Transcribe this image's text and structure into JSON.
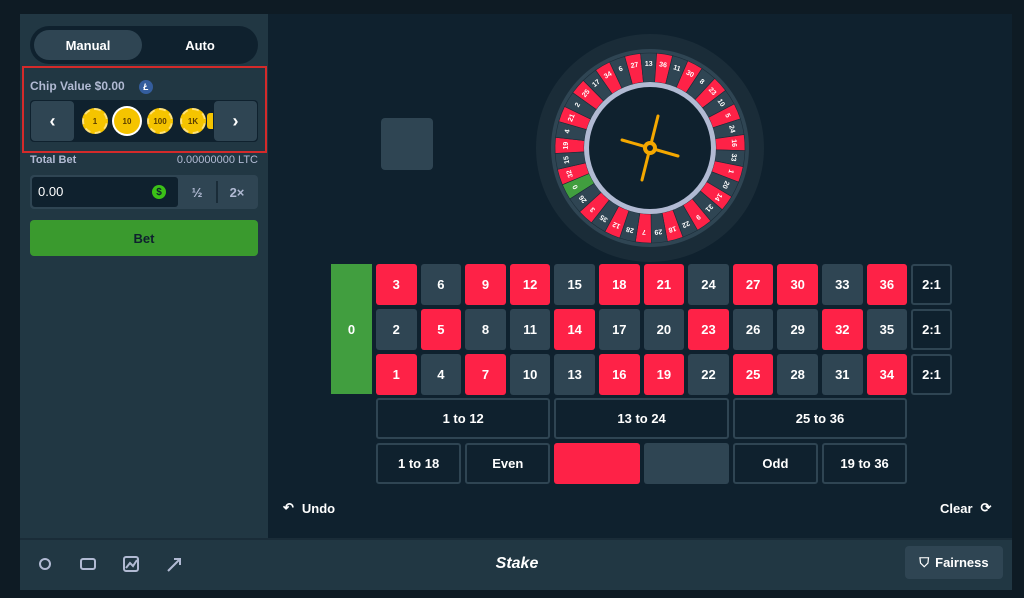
{
  "tabs": [
    "Manual",
    "Auto"
  ],
  "chip_value_label": "Chip Value $0.00",
  "chips": [
    "1",
    "10",
    "100",
    "1K"
  ],
  "total_bet_label": "Total Bet",
  "total_bet_amount": "0.00000000 LTC",
  "bet_input": "0.00",
  "half_button": "½",
  "double_button": "2×",
  "bet_button": "Bet",
  "wheel_numbers": [
    "0",
    "32",
    "15",
    "19",
    "4",
    "21",
    "2",
    "25",
    "17",
    "34",
    "6",
    "27",
    "13",
    "36",
    "11",
    "30",
    "8",
    "23",
    "10",
    "5",
    "24",
    "16",
    "33",
    "1",
    "20",
    "14",
    "31",
    "9",
    "22",
    "18",
    "29",
    "7",
    "28",
    "12",
    "35",
    "3",
    "26"
  ],
  "red_numbers": [
    "1",
    "3",
    "5",
    "7",
    "9",
    "12",
    "14",
    "16",
    "18",
    "19",
    "21",
    "23",
    "25",
    "27",
    "30",
    "32",
    "34",
    "36"
  ],
  "board": {
    "zero": "0",
    "rows": [
      [
        "3",
        "6",
        "9",
        "12",
        "15",
        "18",
        "21",
        "24",
        "27",
        "30",
        "33",
        "36"
      ],
      [
        "2",
        "5",
        "8",
        "11",
        "14",
        "17",
        "20",
        "23",
        "26",
        "29",
        "32",
        "35"
      ],
      [
        "1",
        "4",
        "7",
        "10",
        "13",
        "16",
        "19",
        "22",
        "25",
        "28",
        "31",
        "34"
      ]
    ],
    "columns": [
      "2:1",
      "2:1",
      "2:1"
    ],
    "dozens": [
      "1 to 12",
      "13 to 24",
      "25 to 36"
    ],
    "outside": [
      "1 to 18",
      "Even",
      "Odd",
      "19 to 36"
    ]
  },
  "undo": "Undo",
  "clear": "Clear",
  "logo": "Stake",
  "fairness": "Fairness"
}
